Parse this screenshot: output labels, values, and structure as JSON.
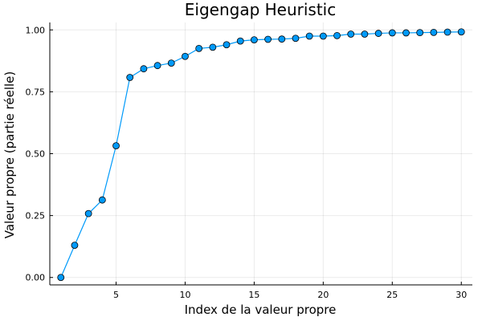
{
  "chart_data": {
    "type": "line",
    "title": "Eigengap Heuristic",
    "xlabel": "Index de la valeur propre",
    "ylabel": "Valeur propre (partie réelle)",
    "xlim": [
      0.2,
      30.8
    ],
    "ylim": [
      -0.03,
      1.03
    ],
    "xticks": [
      5,
      10,
      15,
      20,
      25,
      30
    ],
    "yticks": [
      0.0,
      0.25,
      0.5,
      0.75,
      1.0
    ],
    "xtick_labels": [
      "5",
      "10",
      "15",
      "20",
      "25",
      "30"
    ],
    "ytick_labels": [
      "0.00",
      "0.25",
      "0.50",
      "0.75",
      "1.00"
    ],
    "grid": true,
    "legend": "none",
    "series": [
      {
        "color": "#009AFA",
        "marker": "circle",
        "x": [
          1,
          2,
          3,
          4,
          5,
          6,
          7,
          8,
          9,
          10,
          11,
          12,
          13,
          14,
          15,
          16,
          17,
          18,
          19,
          20,
          21,
          22,
          23,
          24,
          25,
          26,
          27,
          28,
          29,
          30
        ],
        "y": [
          0.0,
          0.13,
          0.258,
          0.313,
          0.532,
          0.808,
          0.843,
          0.856,
          0.866,
          0.893,
          0.925,
          0.93,
          0.94,
          0.955,
          0.96,
          0.962,
          0.963,
          0.966,
          0.975,
          0.975,
          0.977,
          0.983,
          0.983,
          0.986,
          0.988,
          0.988,
          0.989,
          0.99,
          0.991,
          0.992
        ]
      }
    ]
  }
}
